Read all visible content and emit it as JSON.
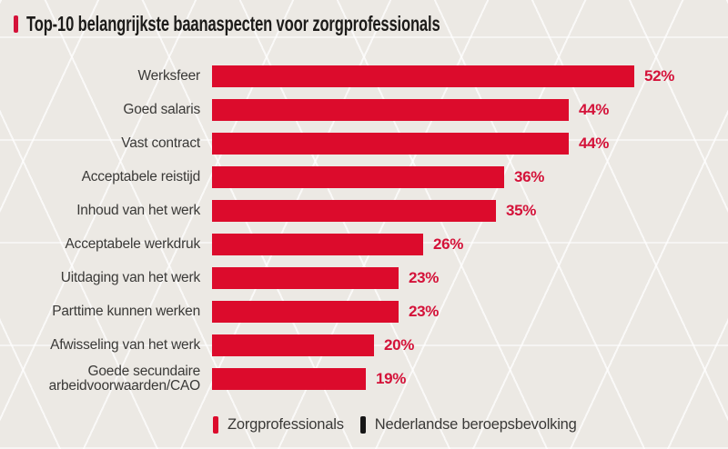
{
  "title": "Top-10 belangrijkste baanaspecten voor zorgprofessionals",
  "colors": {
    "background": "#ece9e4",
    "pattern_line": "#ffffff",
    "bar_red": "#dc0b2c",
    "accent_red": "#d41239",
    "title_text": "#1d1c1a",
    "label_text": "#3a3937",
    "legend_black": "#161616"
  },
  "chart_data": {
    "type": "bar",
    "orientation": "horizontal",
    "title": "Top-10 belangrijkste baanaspecten voor zorgprofessionals",
    "unit": "%",
    "categories": [
      "Werksfeer",
      "Goed salaris",
      "Vast contract",
      "Acceptabele reistijd",
      "Inhoud van het werk",
      "Acceptabele werkdruk",
      "Uitdaging van het werk",
      "Parttime kunnen werken",
      "Afwisseling van het werk",
      "Goede secundaire arbeidvoorwaarden/CAO"
    ],
    "values": [
      52,
      44,
      44,
      36,
      35,
      26,
      23,
      23,
      20,
      19
    ],
    "series_name": "Zorgprofessionals",
    "xlim": [
      0,
      52
    ],
    "grid": false,
    "value_labels_shown": true,
    "legend_position": "bottom"
  },
  "legend": {
    "items": [
      {
        "label": "Zorgprofessionals",
        "color": "#dc0b2c"
      },
      {
        "label": "Nederlandse beroepsbevolking",
        "color": "#161616"
      }
    ]
  }
}
